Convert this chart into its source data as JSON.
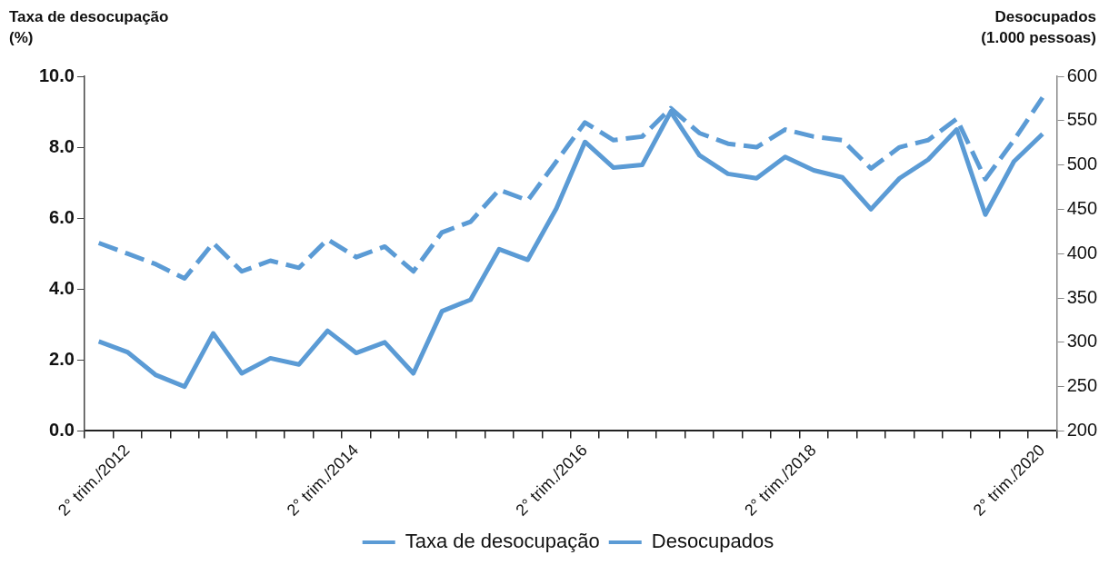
{
  "chart_data": {
    "type": "line",
    "ylabel": "Taxa de desocupação\n(%)",
    "y2label": "Desocupados\n(1.000 pessoas)",
    "categories": [
      null,
      "2° trim./2012",
      null,
      null,
      null,
      null,
      null,
      null,
      null,
      "2° trim./2014",
      null,
      null,
      null,
      null,
      null,
      null,
      null,
      "2° trim./2016",
      null,
      null,
      null,
      null,
      null,
      null,
      null,
      "2° trim./2018",
      null,
      null,
      null,
      null,
      null,
      null,
      null,
      "2° trim./2020"
    ],
    "series": [
      {
        "name": "Taxa de desocupação",
        "color": "#5b9bd5",
        "line_style": "dashed",
        "values": [
          5.3,
          5.0,
          4.7,
          4.3,
          5.3,
          4.5,
          4.8,
          4.6,
          5.4,
          4.9,
          5.2,
          4.5,
          5.6,
          5.9,
          6.8,
          6.5,
          7.6,
          8.7,
          8.2,
          8.3,
          9.1,
          8.4,
          8.1,
          8.0,
          8.5,
          8.3,
          8.2,
          7.4,
          8.0,
          8.2,
          8.8,
          7.1,
          8.2,
          9.4
        ]
      },
      {
        "name": "Desocupados",
        "color": "#5b9bd5",
        "axis": "y2",
        "line_style": "solid",
        "values": [
          301,
          289,
          263,
          250,
          310,
          265,
          282,
          275,
          313,
          288,
          300,
          265,
          335,
          348,
          405,
          393,
          451,
          526,
          497,
          500,
          560,
          511,
          490,
          485,
          509,
          494,
          486,
          450,
          485,
          506,
          540,
          444,
          504,
          535
        ]
      }
    ],
    "ylim": [
      0,
      10
    ],
    "yticks": [
      {
        "value": 0,
        "label": "0.0"
      },
      {
        "value": 2,
        "label": "2.0"
      },
      {
        "value": 4,
        "label": "4.0"
      },
      {
        "value": 6,
        "label": "6.0"
      },
      {
        "value": 8,
        "label": "8.0"
      },
      {
        "value": 10,
        "label": "10.0"
      }
    ],
    "y2lim": [
      200,
      600
    ],
    "y2ticks": [
      200,
      250,
      300,
      350,
      400,
      450,
      500,
      550,
      600
    ],
    "grid": false,
    "legend": "bottom",
    "marker": "none"
  }
}
